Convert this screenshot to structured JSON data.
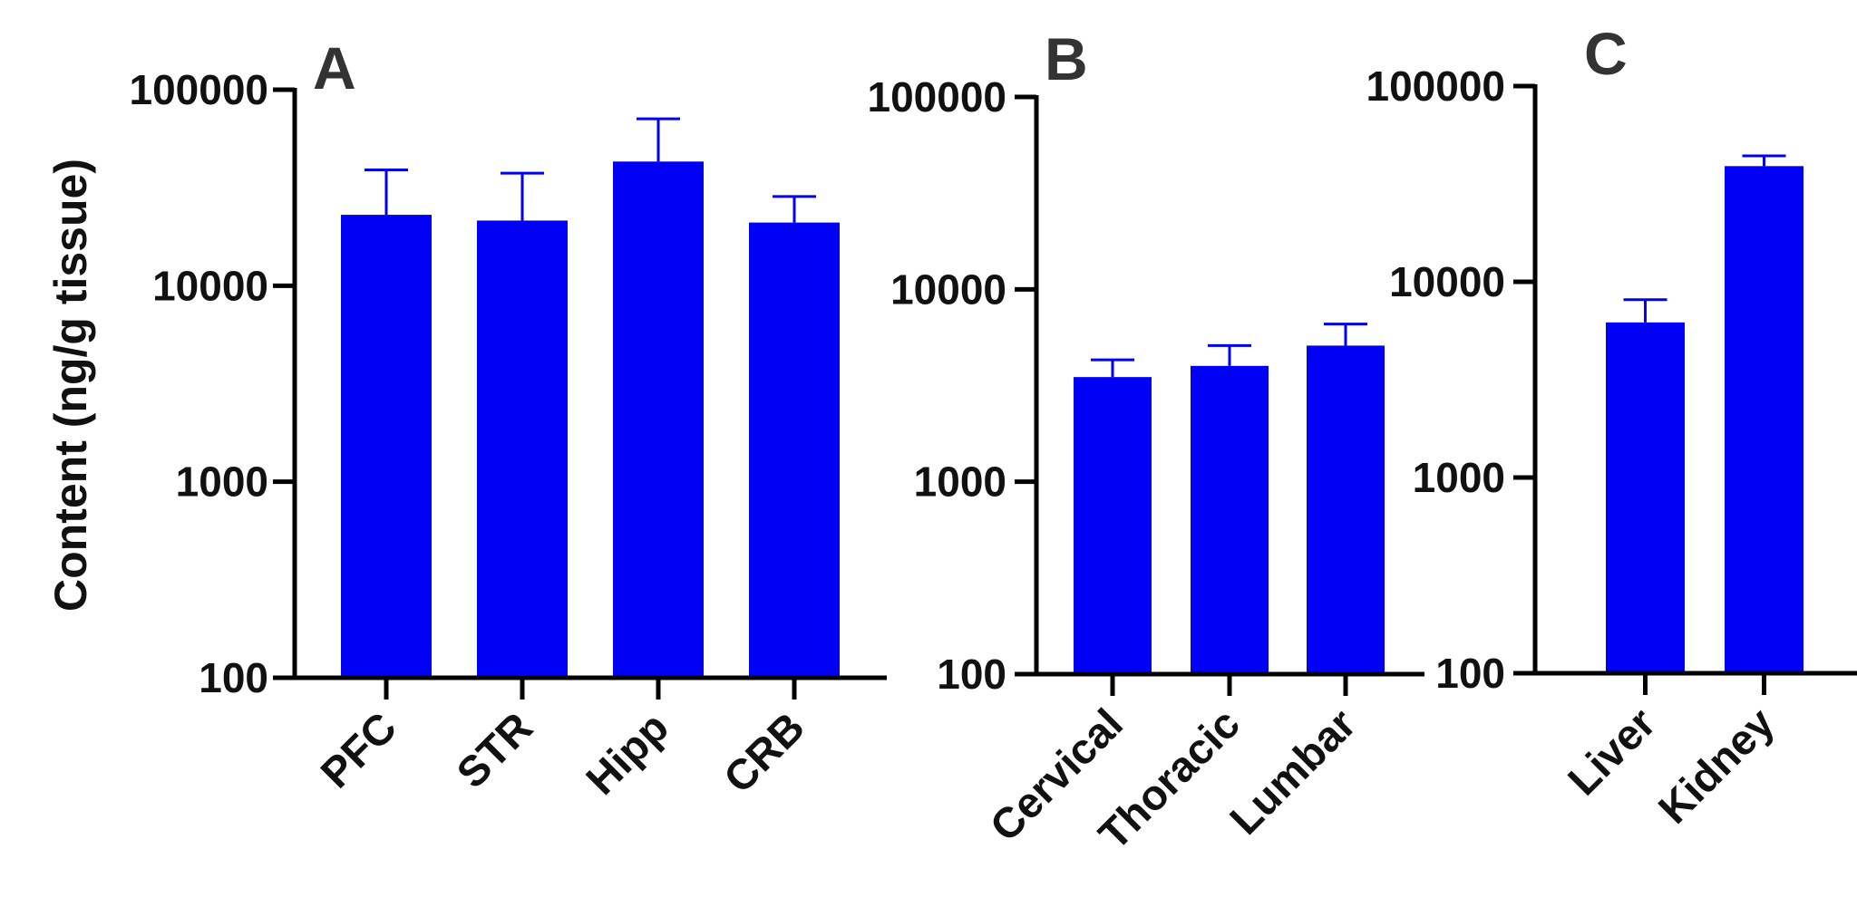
{
  "colors": {
    "bar": "#0000f5",
    "axis": "#000000",
    "text": "#111111",
    "panel_letter": "#333333"
  },
  "chart_data": [
    {
      "type": "bar",
      "panel": "A",
      "ylabel": "Content (ng/g tissue)",
      "yscale": "log",
      "ylim": [
        100,
        100000
      ],
      "yticks": [
        "100",
        "1000",
        "10000",
        "100000"
      ],
      "categories": [
        "PFC",
        "STR",
        "Hipp",
        "CRB"
      ],
      "values": [
        23000,
        21500,
        43000,
        21000
      ],
      "error_upper": [
        39000,
        37500,
        71000,
        28500
      ]
    },
    {
      "type": "bar",
      "panel": "B",
      "yscale": "log",
      "ylim": [
        100,
        100000
      ],
      "yticks": [
        "100",
        "1000",
        "10000",
        "100000"
      ],
      "categories": [
        "Cervical",
        "Thoracic",
        "Lumbar"
      ],
      "values": [
        3500,
        4000,
        5100
      ],
      "error_upper": [
        4300,
        5100,
        6600
      ]
    },
    {
      "type": "bar",
      "panel": "C",
      "yscale": "log",
      "ylim": [
        100,
        100000
      ],
      "yticks": [
        "100",
        "1000",
        "10000",
        "100000"
      ],
      "categories": [
        "Liver",
        "Kidney"
      ],
      "values": [
        6200,
        39000
      ],
      "error_upper": [
        8100,
        44000
      ]
    }
  ]
}
